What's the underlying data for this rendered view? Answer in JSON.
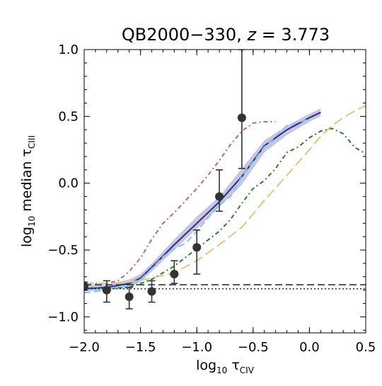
{
  "chart_data": {
    "type": "line",
    "title": {
      "name": "QB2000−330, ",
      "z_symbol": "z",
      "z_value": " = 3.773"
    },
    "xlabel": {
      "prefix": "log",
      "sub": "10",
      "symbol": " τ",
      "ion": "CIV"
    },
    "ylabel": {
      "prefix": "log",
      "sub": "10",
      "text": " median τ",
      "ion": "CIII"
    },
    "xlim": [
      -2.0,
      0.5
    ],
    "ylim": [
      -1.12,
      1.0
    ],
    "xticks": [
      -2.0,
      -1.5,
      -1.0,
      -0.5,
      0.0,
      0.5
    ],
    "xtick_labels": [
      "−2.0",
      "−1.5",
      "−1.0",
      "−0.5",
      "0.0",
      "0.5"
    ],
    "yticks": [
      -1.0,
      -0.5,
      0.0,
      0.5,
      1.0
    ],
    "ytick_labels": [
      "−1.0",
      "−0.5",
      "0.0",
      "0.5",
      "1.0"
    ],
    "grid": false,
    "legend": "none",
    "observed_points": {
      "color": "#333333",
      "points": [
        {
          "x": -2.0,
          "y": -0.77,
          "yerr_lo": 0.03,
          "yerr_hi": 0.03
        },
        {
          "x": -1.8,
          "y": -0.8,
          "yerr_lo": 0.09,
          "yerr_hi": 0.07
        },
        {
          "x": -1.6,
          "y": -0.85,
          "yerr_lo": 0.09,
          "yerr_hi": 0.07
        },
        {
          "x": -1.4,
          "y": -0.81,
          "yerr_lo": 0.08,
          "yerr_hi": 0.08
        },
        {
          "x": -1.2,
          "y": -0.68,
          "yerr_lo": 0.07,
          "yerr_hi": 0.1
        },
        {
          "x": -1.0,
          "y": -0.48,
          "yerr_lo": 0.2,
          "yerr_hi": 0.13
        },
        {
          "x": -0.8,
          "y": -0.1,
          "yerr_lo": 0.11,
          "yerr_hi": 0.2
        },
        {
          "x": -0.6,
          "y": 0.49,
          "yerr_lo": 0.38,
          "yerr_hi": 0.51
        }
      ]
    },
    "model_band": {
      "color": "#b6b1d9",
      "x": [
        -2.0,
        -1.8,
        -1.6,
        -1.5,
        -1.4,
        -1.2,
        -1.0,
        -0.8,
        -0.6,
        -0.4,
        -0.2,
        0.0,
        0.1
      ],
      "lo": [
        -0.81,
        -0.8,
        -0.78,
        -0.74,
        -0.66,
        -0.5,
        -0.34,
        -0.18,
        -0.01,
        0.23,
        0.36,
        0.46,
        0.5
      ],
      "hi": [
        -0.76,
        -0.76,
        -0.72,
        -0.68,
        -0.6,
        -0.42,
        -0.25,
        -0.1,
        0.11,
        0.32,
        0.43,
        0.52,
        0.56
      ]
    },
    "series": [
      {
        "color": "#2d2a8a",
        "dash": "",
        "width": 2,
        "x": [
          -2.0,
          -1.8,
          -1.6,
          -1.5,
          -1.4,
          -1.2,
          -1.0,
          -0.8,
          -0.6,
          -0.4,
          -0.2,
          0.0,
          0.1
        ],
        "y": [
          -0.79,
          -0.78,
          -0.75,
          -0.71,
          -0.63,
          -0.46,
          -0.3,
          -0.14,
          0.05,
          0.28,
          0.4,
          0.49,
          0.53
        ]
      },
      {
        "color": "#7ec8e3",
        "dash": "9,5",
        "width": 2,
        "x": [
          -2.0,
          -1.8,
          -1.6,
          -1.5,
          -1.4,
          -1.3,
          -1.2,
          -1.1,
          -1.0,
          -0.9,
          -0.8,
          -0.7,
          -0.6,
          -0.4,
          -0.2,
          0.0
        ],
        "y": [
          -0.82,
          -0.8,
          -0.76,
          -0.72,
          -0.64,
          -0.55,
          -0.49,
          -0.45,
          -0.36,
          -0.26,
          -0.16,
          -0.1,
          0.05,
          0.27,
          0.43,
          0.48
        ]
      },
      {
        "color": "#c96073",
        "dash": "2,4,6,4",
        "width": 2,
        "x": [
          -2.0,
          -1.8,
          -1.7,
          -1.6,
          -1.5,
          -1.4,
          -1.3,
          -1.2,
          -1.1,
          -1.0,
          -0.9,
          -0.8,
          -0.7,
          -0.6,
          -0.5,
          -0.4,
          -0.3
        ],
        "y": [
          -0.75,
          -0.75,
          -0.73,
          -0.66,
          -0.56,
          -0.42,
          -0.3,
          -0.22,
          -0.13,
          -0.04,
          0.06,
          0.17,
          0.29,
          0.39,
          0.45,
          0.46,
          0.46
        ]
      },
      {
        "color": "#2f7a2f",
        "dash": "6,4,2,4",
        "width": 2,
        "x": [
          -2.0,
          -1.8,
          -1.6,
          -1.5,
          -1.4,
          -1.2,
          -1.0,
          -0.8,
          -0.7,
          -0.6,
          -0.5,
          -0.4,
          -0.3,
          -0.2,
          -0.1,
          0.0,
          0.1,
          0.2,
          0.3,
          0.4,
          0.5
        ],
        "y": [
          -0.78,
          -0.79,
          -0.78,
          -0.75,
          -0.72,
          -0.62,
          -0.49,
          -0.36,
          -0.27,
          -0.15,
          -0.04,
          0.02,
          0.11,
          0.23,
          0.27,
          0.34,
          0.39,
          0.41,
          0.37,
          0.27,
          0.22
        ]
      },
      {
        "color": "#e2c47e",
        "dash": "14,6",
        "width": 2,
        "x": [
          -2.0,
          -1.8,
          -1.6,
          -1.4,
          -1.2,
          -1.0,
          -0.8,
          -0.6,
          -0.4,
          -0.2,
          0.0,
          0.1,
          0.2,
          0.3,
          0.4,
          0.5
        ],
        "y": [
          -0.75,
          -0.75,
          -0.74,
          -0.71,
          -0.67,
          -0.58,
          -0.46,
          -0.33,
          -0.13,
          0.06,
          0.25,
          0.35,
          0.43,
          0.49,
          0.54,
          0.58
        ]
      },
      {
        "color": "#333333",
        "dash": "10,5",
        "width": 1.6,
        "x": [
          -2.0,
          0.5
        ],
        "y": [
          -0.76,
          -0.76
        ]
      },
      {
        "color": "#2d2a8a",
        "dash": "2,3",
        "width": 1.6,
        "x": [
          -2.0,
          0.5
        ],
        "y": [
          -0.79,
          -0.79
        ]
      }
    ]
  }
}
